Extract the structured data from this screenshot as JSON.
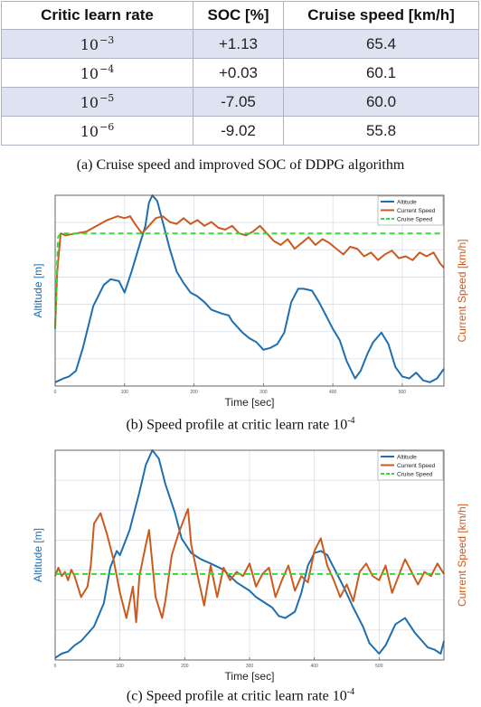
{
  "table": {
    "headers": [
      "Critic learn rate",
      "SOC [%]",
      "Cruise speed [km/h]"
    ],
    "rows": [
      {
        "rate_base": "10",
        "rate_exp": "−3",
        "soc": "+1.13",
        "speed": "65.4"
      },
      {
        "rate_base": "10",
        "rate_exp": "−4",
        "soc": "+0.03",
        "speed": "60.1"
      },
      {
        "rate_base": "10",
        "rate_exp": "−5",
        "soc": "-7.05",
        "speed": "60.0"
      },
      {
        "rate_base": "10",
        "rate_exp": "−6",
        "soc": "-9.02",
        "speed": "55.8"
      }
    ],
    "caption": "(a) Cruise speed and improved SOC of DDPG algorithm"
  },
  "captions": {
    "b_text": "(b) Speed profile at critic learn rate 10",
    "b_exp": "-4",
    "c_text": "(c) Speed profile at critic learn rate 10",
    "c_exp": "-4"
  },
  "colors": {
    "altitude": "#1f6fb0",
    "current_speed": "#cc5a1e",
    "cruise_speed": "#33dd33"
  },
  "chart_data": [
    {
      "type": "line",
      "xlabel": "Time [sec]",
      "ylabel_left": "Altitude [m]",
      "ylabel_right": "Current Speed [km/h]",
      "legend": [
        "Altitude",
        "Current Speed",
        "Cruise Speed"
      ],
      "legend_position": "top-right",
      "grid": true,
      "xlim": [
        0,
        560
      ],
      "x_ticks": [
        0,
        100,
        200,
        300,
        400,
        500
      ],
      "y_left_lim": [
        0,
        100
      ],
      "y_right_lim": [
        0,
        100
      ],
      "series": [
        {
          "name": "Altitude",
          "axis": "left",
          "x": [
            0,
            12,
            20,
            30,
            40,
            55,
            70,
            80,
            92,
            100,
            110,
            120,
            130,
            135,
            140,
            147,
            155,
            165,
            175,
            185,
            195,
            205,
            215,
            225,
            240,
            250,
            255,
            270,
            280,
            290,
            300,
            310,
            320,
            330,
            340,
            350,
            358,
            370,
            380,
            390,
            400,
            410,
            420,
            432,
            440,
            450,
            458,
            470,
            480,
            490,
            500,
            510,
            520,
            530,
            540,
            550,
            560
          ],
          "y": [
            2,
            4,
            5,
            8,
            20,
            42,
            53,
            56,
            55,
            49,
            60,
            72,
            84,
            96,
            100,
            97,
            86,
            72,
            60,
            54,
            49,
            47,
            44,
            40,
            38,
            37,
            34,
            28,
            25,
            23,
            19,
            20,
            22,
            28,
            44,
            51,
            51,
            50,
            44,
            37,
            30,
            24,
            13,
            4,
            8,
            17,
            23,
            28,
            22,
            10,
            5,
            4,
            7,
            3,
            2,
            4,
            9
          ]
        },
        {
          "name": "Current Speed",
          "axis": "right",
          "x": [
            0,
            3,
            8,
            15,
            30,
            45,
            60,
            75,
            90,
            100,
            108,
            115,
            125,
            135,
            145,
            155,
            165,
            175,
            185,
            195,
            205,
            215,
            225,
            235,
            245,
            255,
            265,
            275,
            285,
            295,
            305,
            315,
            325,
            335,
            345,
            355,
            365,
            375,
            385,
            395,
            405,
            415,
            425,
            435,
            445,
            455,
            465,
            475,
            485,
            495,
            505,
            515,
            525,
            535,
            545,
            555,
            560
          ],
          "y": [
            30,
            60,
            80,
            79,
            80,
            81,
            84,
            87,
            89,
            88,
            89,
            85,
            80,
            84,
            88,
            89,
            86,
            85,
            88,
            85,
            87,
            84,
            86,
            83,
            82,
            84,
            80,
            79,
            81,
            84,
            80,
            76,
            74,
            77,
            72,
            75,
            78,
            74,
            77,
            75,
            72,
            69,
            73,
            72,
            68,
            70,
            66,
            69,
            71,
            67,
            68,
            66,
            70,
            68,
            70,
            64,
            62
          ]
        },
        {
          "name": "Cruise Speed",
          "axis": "right",
          "x": [
            0,
            4,
            8,
            560
          ],
          "y": [
            30,
            78,
            80,
            80
          ]
        }
      ]
    },
    {
      "type": "line",
      "xlabel": "Time [sec]",
      "ylabel_left": "Altitude [m]",
      "ylabel_right": "Current Speed [km/h]",
      "legend": [
        "Altitude",
        "Current Speed",
        "Cruise Speed"
      ],
      "legend_position": "top-right",
      "grid": true,
      "xlim": [
        0,
        600
      ],
      "x_ticks": [
        0,
        100,
        200,
        300,
        400,
        500
      ],
      "y_left_lim": [
        0,
        100
      ],
      "y_right_lim": [
        0,
        100
      ],
      "series": [
        {
          "name": "Altitude",
          "axis": "left",
          "x": [
            0,
            10,
            20,
            30,
            40,
            60,
            75,
            85,
            95,
            100,
            115,
            130,
            140,
            150,
            160,
            170,
            185,
            195,
            210,
            225,
            240,
            260,
            280,
            300,
            310,
            320,
            335,
            345,
            355,
            370,
            380,
            390,
            400,
            410,
            420,
            430,
            445,
            460,
            475,
            485,
            500,
            510,
            525,
            540,
            555,
            575,
            585,
            595,
            600
          ],
          "y": [
            1,
            3,
            4,
            7,
            9,
            16,
            27,
            44,
            52,
            50,
            62,
            80,
            93,
            100,
            96,
            84,
            70,
            58,
            51,
            48,
            46,
            43,
            37,
            33,
            30,
            28,
            25,
            21,
            20,
            23,
            32,
            45,
            51,
            52,
            50,
            44,
            35,
            25,
            16,
            8,
            3,
            7,
            17,
            20,
            13,
            6,
            5,
            3,
            9
          ]
        },
        {
          "name": "Current Speed",
          "axis": "right",
          "x": [
            0,
            5,
            10,
            15,
            20,
            25,
            30,
            40,
            50,
            55,
            60,
            70,
            80,
            90,
            100,
            110,
            120,
            125,
            130,
            140,
            145,
            155,
            165,
            170,
            180,
            190,
            200,
            205,
            210,
            220,
            230,
            240,
            250,
            260,
            270,
            280,
            290,
            300,
            310,
            320,
            330,
            340,
            350,
            360,
            370,
            380,
            390,
            400,
            410,
            420,
            430,
            440,
            450,
            460,
            470,
            480,
            490,
            500,
            510,
            520,
            530,
            540,
            550,
            560,
            570,
            580,
            590,
            600
          ],
          "y": [
            40,
            44,
            40,
            42,
            38,
            43,
            40,
            30,
            35,
            45,
            65,
            70,
            60,
            48,
            32,
            20,
            35,
            18,
            40,
            55,
            62,
            30,
            20,
            28,
            50,
            60,
            68,
            72,
            55,
            40,
            26,
            45,
            30,
            44,
            38,
            42,
            40,
            46,
            35,
            41,
            44,
            30,
            38,
            45,
            33,
            40,
            37,
            52,
            58,
            45,
            38,
            30,
            36,
            28,
            42,
            46,
            40,
            38,
            45,
            32,
            40,
            48,
            42,
            36,
            42,
            40,
            46,
            41
          ]
        },
        {
          "name": "Cruise Speed",
          "axis": "right",
          "x": [
            0,
            600
          ],
          "y": [
            41,
            41
          ]
        }
      ]
    }
  ]
}
